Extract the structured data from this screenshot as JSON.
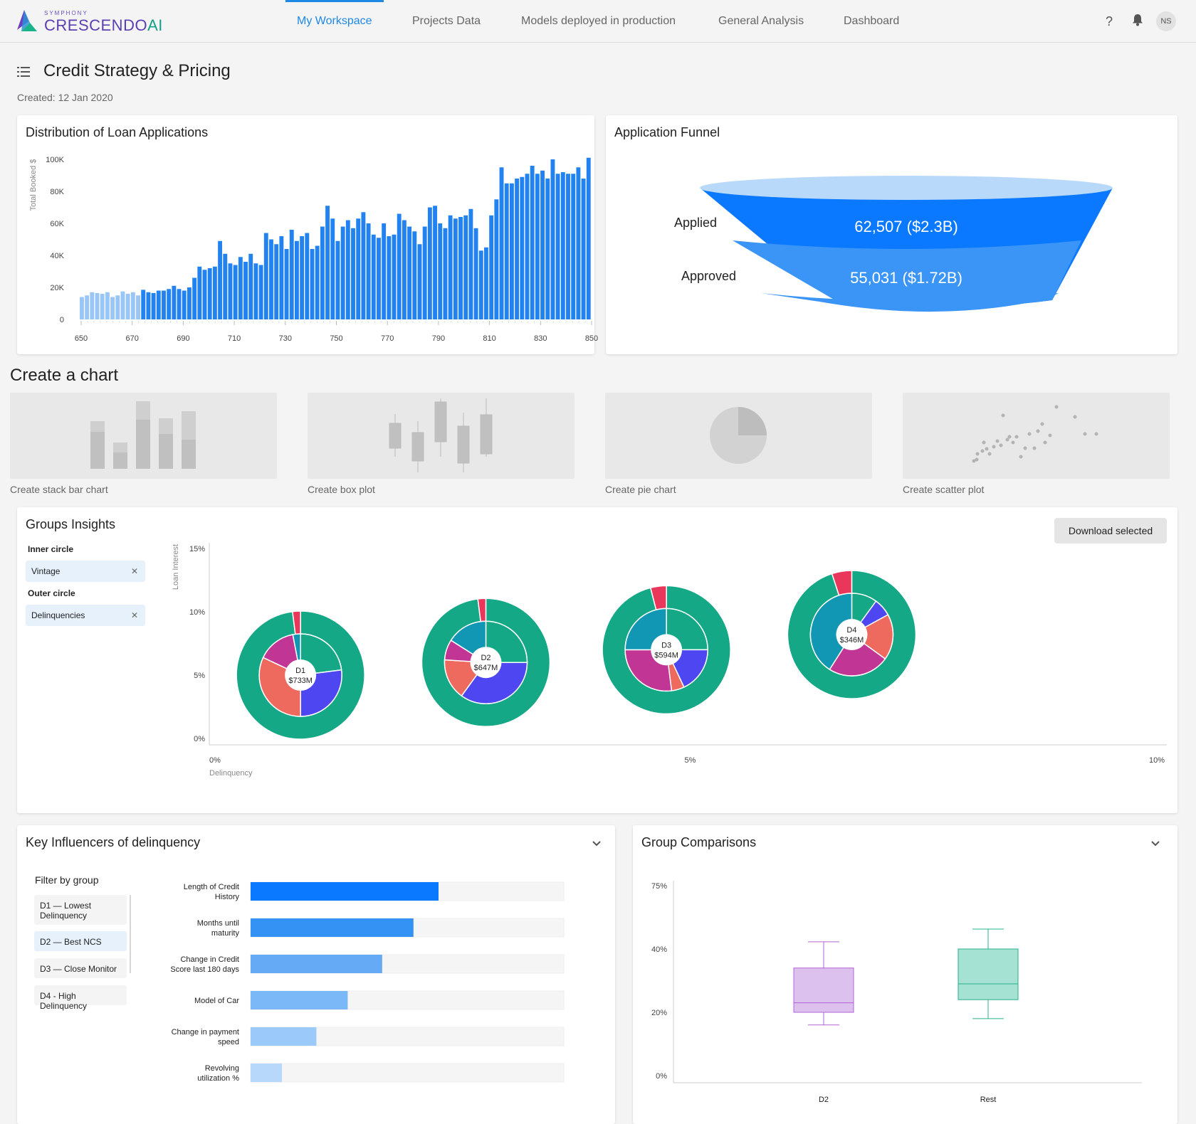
{
  "app": {
    "logo_small": "SYMPHONY",
    "logo_main": "CRESCENDO",
    "logo_ai": "AI",
    "nav": [
      "My Workspace",
      "Projects Data",
      "Models deployed in production",
      "General Analysis",
      "Dashboard"
    ],
    "active_nav": "My Workspace",
    "user_initials": "NS"
  },
  "page": {
    "title": "Credit Strategy & Pricing",
    "created": "Created: 12 Jan 2020"
  },
  "distribution": {
    "title": "Distribution of Loan Applications",
    "chart_data": {
      "type": "bar",
      "title": "Distribution of Loan Applications",
      "ylabel": "Total Booked $",
      "xlabel": "",
      "ylim": [
        0,
        100000
      ],
      "yticks": [
        "0",
        "20K",
        "40K",
        "60K",
        "80K",
        "100K"
      ],
      "xticks": [
        "650",
        "670",
        "690",
        "710",
        "730",
        "750",
        "770",
        "790",
        "810",
        "830",
        "850"
      ],
      "x_start": 650,
      "x_step": 2.5,
      "highlight_from_index": 12,
      "values": [
        14000,
        15000,
        17000,
        16500,
        16000,
        17000,
        14000,
        15000,
        17500,
        16000,
        17000,
        15000,
        18500,
        17000,
        16500,
        18000,
        18000,
        19000,
        21000,
        19000,
        18000,
        20000,
        26000,
        33000,
        31000,
        32000,
        33000,
        49000,
        41000,
        35000,
        34000,
        39000,
        36000,
        41000,
        35000,
        34000,
        54000,
        50000,
        47000,
        52000,
        44000,
        56000,
        49000,
        52000,
        54000,
        44000,
        46000,
        58000,
        71000,
        63000,
        49000,
        58000,
        62000,
        57000,
        63000,
        67000,
        60000,
        53000,
        51000,
        60000,
        52000,
        53000,
        66000,
        62000,
        58000,
        55000,
        47000,
        58000,
        70000,
        71000,
        60000,
        57000,
        65000,
        63000,
        64000,
        65000,
        69000,
        57000,
        43000,
        45000,
        65000,
        75000,
        95000,
        85000,
        85000,
        88000,
        89000,
        91000,
        96000,
        91000,
        93000,
        88000,
        100000,
        91000,
        92000,
        91000,
        91000,
        95000,
        88000,
        101000
      ]
    }
  },
  "funnel": {
    "title": "Application Funnel",
    "chart_data": {
      "type": "funnel",
      "stages": [
        {
          "name": "Applied",
          "label": "62,507 ($2.3B)",
          "count": 62507
        },
        {
          "name": "Approved",
          "label": "55,031 ($1.72B)",
          "count": 55031
        }
      ],
      "colors": [
        "#0a79ff",
        "#3b95f7"
      ]
    }
  },
  "create_chart": {
    "title": "Create a chart",
    "options": [
      "Create stack bar chart",
      "Create box plot",
      "Create pie chart",
      "Create scatter plot"
    ]
  },
  "groups": {
    "title": "Groups Insights",
    "download_label": "Download selected",
    "inner_label": "Inner circle",
    "inner_value": "Vintage",
    "outer_label": "Outer circle",
    "outer_value": "Delinquencies",
    "remove_icon": "close-icon",
    "chart_data": {
      "type": "scatter",
      "ylabel": "Loan Interest",
      "xlabel": "Delinquency",
      "ylim": [
        0,
        15
      ],
      "xlim": [
        0,
        10
      ],
      "yticks": [
        "0%",
        "5%",
        "10%",
        "15%"
      ],
      "xticks": [
        "0%",
        "5%",
        "10%"
      ],
      "points": [
        {
          "name": "D1",
          "value": "$733M",
          "x": 0.9,
          "y": 5,
          "outer": [
            0.98,
            0.02
          ],
          "inner": [
            0.23,
            0.27,
            0.32,
            0.15,
            0.03
          ]
        },
        {
          "name": "D2",
          "value": "$647M",
          "x": 2.85,
          "y": 6,
          "outer": [
            0.98,
            0.02
          ],
          "inner": [
            0.25,
            0.35,
            0.16,
            0.08,
            0.16
          ]
        },
        {
          "name": "D3",
          "value": "$594M",
          "x": 4.75,
          "y": 7,
          "outer": [
            0.96,
            0.04
          ],
          "inner": [
            0.25,
            0.18,
            0.05,
            0.27,
            0.25
          ]
        },
        {
          "name": "D4",
          "value": "$346M",
          "x": 6.7,
          "y": 8.2,
          "outer": [
            0.95,
            0.05
          ],
          "inner": [
            0.1,
            0.07,
            0.18,
            0.24,
            0.41
          ]
        }
      ],
      "colors": {
        "outer": [
          "#14a886",
          "#e8375a"
        ],
        "inner": [
          "#14a886",
          "#4e46f0",
          "#ee6a5e",
          "#c13594",
          "#1196b3"
        ]
      }
    }
  },
  "influencers": {
    "title": "Key Influencers of delinquency",
    "filter_title": "Filter by group",
    "filters": [
      "D1 — Lowest Delinquency",
      "D2 — Best NCS",
      "D3 —  Close Monitor",
      "D4 - High Delinquency"
    ],
    "selected_filter": "D2 — Best NCS",
    "chart_data": {
      "type": "bar",
      "orientation": "horizontal",
      "categories": [
        "Length of Credit History",
        "Months until maturity",
        "Change in Credit Score last 180 days",
        "Model of Car",
        "Change in payment speed",
        "Revolving utilization %"
      ],
      "values": [
        0.6,
        0.52,
        0.42,
        0.31,
        0.21,
        0.1
      ],
      "colors": [
        "#0a79ff",
        "#3592f5",
        "#64aaf5",
        "#7ab8f8",
        "#9ac9fa",
        "#b7d8fb"
      ]
    }
  },
  "comparisons": {
    "title": "Group Comparisons",
    "chart_data": {
      "type": "box",
      "categories": [
        "D2",
        "Rest"
      ],
      "yticks": [
        "0%",
        "20%",
        "40%",
        "75%"
      ],
      "boxes": [
        {
          "name": "D2",
          "min": 16,
          "q1": 20,
          "median": 23,
          "q3": 34,
          "max": 44
        },
        {
          "name": "Rest",
          "min": 18,
          "q1": 24,
          "median": 29,
          "q3": 40,
          "max": 51
        }
      ],
      "colors": {
        "D2": "#b264d4",
        "Rest": "#2ab08f"
      }
    }
  }
}
